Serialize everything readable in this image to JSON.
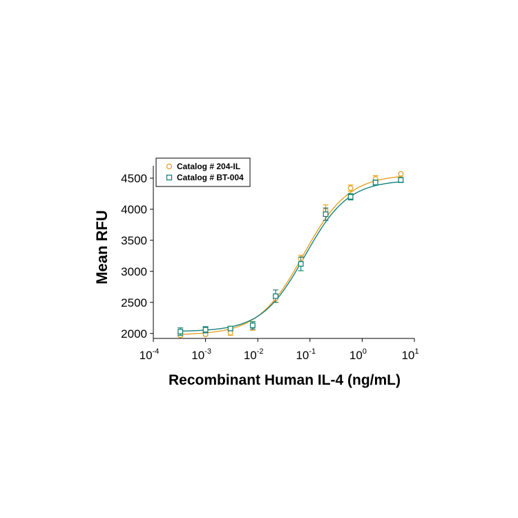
{
  "chart_data": {
    "type": "scatter",
    "xscale": "log",
    "xlim": [
      0.0001,
      10
    ],
    "ylim": [
      1920,
      4700
    ],
    "xlabel": "Recombinant Human IL-4 (ng/mL)",
    "ylabel": "Mean RFU",
    "x_ticks": [
      {
        "base": "10",
        "exp": "-4",
        "value": 0.0001
      },
      {
        "base": "10",
        "exp": "-3",
        "value": 0.001
      },
      {
        "base": "10",
        "exp": "-2",
        "value": 0.01
      },
      {
        "base": "10",
        "exp": "-1",
        "value": 0.1
      },
      {
        "base": "10",
        "exp": "0",
        "value": 1
      },
      {
        "base": "10",
        "exp": "1",
        "value": 10
      }
    ],
    "y_ticks": [
      2000,
      2500,
      3000,
      3500,
      4000,
      4500
    ],
    "legend_position": "top-left",
    "series": [
      {
        "name": "Catalog # 204-IL",
        "color": "#E8A020",
        "marker": "circle",
        "x": [
          0.00033,
          0.001,
          0.003,
          0.008,
          0.022,
          0.067,
          0.2,
          0.6,
          1.8,
          5.5
        ],
        "y": [
          1970,
          1985,
          2010,
          2120,
          2560,
          3200,
          3980,
          4340,
          4490,
          4570
        ],
        "error": [
          25,
          25,
          40,
          70,
          60,
          60,
          90,
          50,
          50,
          0
        ],
        "fit": {
          "bottom": 1975,
          "top": 4560,
          "ec50": 0.075,
          "hill": 1.0
        }
      },
      {
        "name": "Catalog # BT-004",
        "color": "#16817A",
        "marker": "square",
        "x": [
          0.00033,
          0.001,
          0.003,
          0.008,
          0.022,
          0.067,
          0.2,
          0.6,
          1.8,
          5.5
        ],
        "y": [
          2030,
          2060,
          2080,
          2130,
          2600,
          3120,
          3920,
          4200,
          4430,
          4470
        ],
        "error": [
          60,
          50,
          30,
          60,
          100,
          110,
          100,
          50,
          40,
          40
        ],
        "fit": {
          "bottom": 2030,
          "top": 4470,
          "ec50": 0.08,
          "hill": 1.05
        }
      }
    ]
  }
}
